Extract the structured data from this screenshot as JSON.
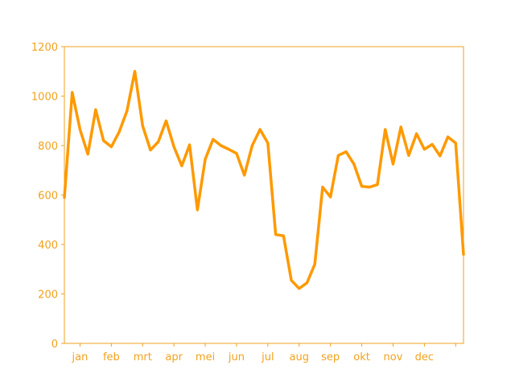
{
  "chart_data": {
    "type": "line",
    "title": "",
    "xlabel": "",
    "ylabel": "",
    "ylim": [
      0,
      1200
    ],
    "yticks": [
      0,
      200,
      400,
      600,
      800,
      1000,
      1200
    ],
    "ytick_labels": [
      "0",
      "200",
      "400",
      "600",
      "800",
      "1000",
      "1200"
    ],
    "xlim": [
      0,
      51
    ],
    "xtick_positions": [
      2,
      6,
      10,
      14,
      18,
      22,
      26,
      30,
      34,
      38,
      42,
      46,
      50
    ],
    "xtick_labels": [
      "jan",
      "feb",
      "mrt",
      "apr",
      "mei",
      "jun",
      "jul",
      "aug",
      "sep",
      "okt",
      "nov",
      "dec",
      ""
    ],
    "grid": false,
    "legend": "none",
    "series": [
      {
        "x": [
          0,
          1,
          2,
          3,
          4,
          5,
          6,
          7,
          8,
          9,
          10,
          11,
          12,
          13,
          14,
          15,
          16,
          17,
          18,
          19,
          20,
          21,
          22,
          23,
          24,
          25,
          26,
          27,
          28,
          29,
          30,
          31,
          32,
          33,
          34,
          35,
          36,
          37,
          38,
          39,
          40,
          41,
          42,
          43,
          44,
          45,
          46,
          47,
          48,
          49,
          50,
          51
        ],
        "values": [
          590,
          1015,
          865,
          765,
          945,
          820,
          795,
          855,
          940,
          1100,
          880,
          782,
          815,
          900,
          795,
          718,
          803,
          540,
          745,
          825,
          800,
          785,
          768,
          680,
          800,
          865,
          810,
          440,
          435,
          255,
          222,
          245,
          320,
          632,
          592,
          760,
          775,
          725,
          635,
          632,
          642,
          865,
          725,
          875,
          760,
          848,
          785,
          805,
          758,
          835,
          810,
          360
        ]
      }
    ],
    "colors": {
      "line": "#ff9900",
      "axis": "#f2a21d",
      "ticks": "#f2a21d"
    }
  }
}
